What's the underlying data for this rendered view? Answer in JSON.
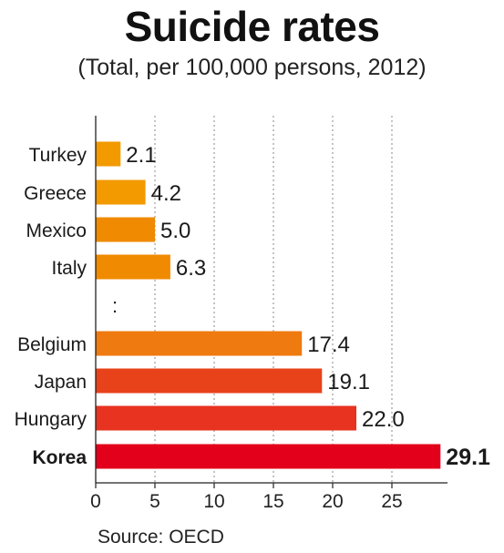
{
  "header": {
    "title": "Suicide rates",
    "subtitle": "(Total, per 100,000 persons, 2012)"
  },
  "footer": {
    "source": "Source: OECD"
  },
  "chart_data": {
    "type": "bar",
    "orientation": "horizontal",
    "title": "Suicide rates",
    "subtitle": "(Total, per 100,000 persons, 2012)",
    "xlabel": "",
    "ylabel": "",
    "xlim": [
      0,
      30
    ],
    "x_ticks": [
      0,
      5,
      10,
      15,
      20,
      25
    ],
    "grid": "vertical dotted",
    "categories": [
      "Turkey",
      "Greece",
      "Mexico",
      "Italy",
      "Belgium",
      "Japan",
      "Hungary",
      "Korea"
    ],
    "values": [
      2.1,
      4.2,
      5.0,
      6.3,
      17.4,
      19.1,
      22.0,
      29.1
    ],
    "value_labels": [
      "2.1",
      "4.2",
      "5.0",
      "6.3",
      "17.4",
      "19.1",
      "22.0",
      "29.1"
    ],
    "bar_colors": [
      "#f29a00",
      "#f29a00",
      "#f08a00",
      "#f08a00",
      "#ef7a10",
      "#e8421a",
      "#e73320",
      "#e3001b"
    ],
    "highlight": "Korea",
    "gap_marker": ":",
    "gap_after": "Italy"
  }
}
